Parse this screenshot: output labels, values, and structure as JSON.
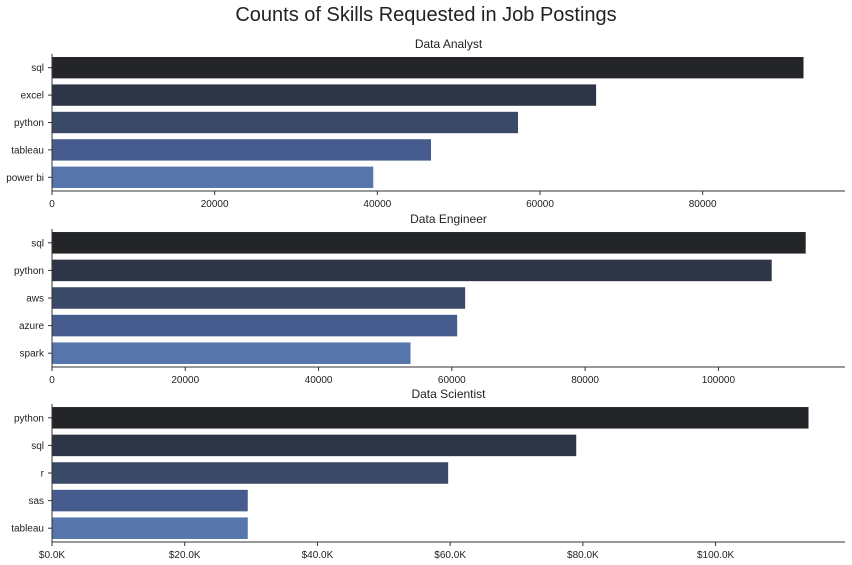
{
  "figure": {
    "title": "Counts of Skills Requested in Job Postings"
  },
  "chart_data": [
    {
      "type": "bar",
      "orientation": "horizontal",
      "title": "Data Analyst",
      "categories": [
        "sql",
        "excel",
        "python",
        "tableau",
        "power bi"
      ],
      "values": [
        92400,
        66900,
        57300,
        46600,
        39500
      ],
      "xlim": [
        0,
        97500
      ],
      "xticks": [
        0,
        20000,
        40000,
        60000,
        80000
      ],
      "xtick_labels": [
        "0",
        "20000",
        "40000",
        "60000",
        "80000"
      ],
      "colors": [
        "#232529",
        "#2e3547",
        "#3b4968",
        "#465c8e",
        "#5575ab"
      ],
      "grid": false
    },
    {
      "type": "bar",
      "orientation": "horizontal",
      "title": "Data Engineer",
      "categories": [
        "sql",
        "python",
        "aws",
        "azure",
        "spark"
      ],
      "values": [
        113100,
        108000,
        62000,
        60800,
        53800
      ],
      "xlim": [
        0,
        119000
      ],
      "xticks": [
        0,
        20000,
        40000,
        60000,
        80000,
        100000
      ],
      "xtick_labels": [
        "0",
        "20000",
        "40000",
        "60000",
        "80000",
        "100000"
      ],
      "colors": [
        "#232529",
        "#2e3547",
        "#3b4968",
        "#465c8e",
        "#5575ab"
      ],
      "grid": false
    },
    {
      "type": "bar",
      "orientation": "horizontal",
      "title": "Data Scientist",
      "categories": [
        "python",
        "sql",
        "r",
        "sas",
        "tableau"
      ],
      "values": [
        114000,
        79000,
        59700,
        29500,
        29500
      ],
      "xlim": [
        0,
        119500
      ],
      "xticks": [
        0,
        20000,
        40000,
        60000,
        80000,
        100000
      ],
      "xtick_labels": [
        "$0.0K",
        "$20.0K",
        "$40.0K",
        "$60.0K",
        "$80.0K",
        "$100.0K"
      ],
      "colors": [
        "#232529",
        "#2e3547",
        "#3b4968",
        "#465c8e",
        "#5575ab"
      ],
      "grid": false
    }
  ]
}
